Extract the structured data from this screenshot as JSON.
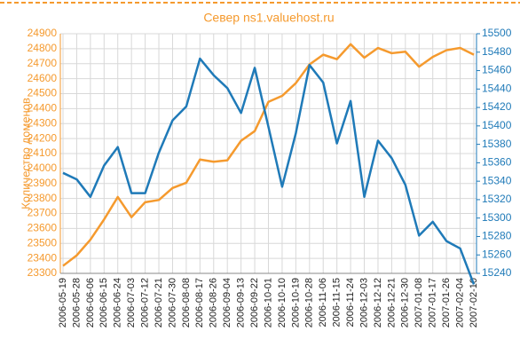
{
  "chart_data": {
    "type": "line",
    "title": "Север ns1.valuehost.ru",
    "ylabel": "Количество доменов",
    "categories": [
      "2006-05-19",
      "2006-05-28",
      "2006-06-06",
      "2006-06-15",
      "2006-06-24",
      "2006-07-03",
      "2006-07-12",
      "2006-07-21",
      "2006-07-30",
      "2006-08-08",
      "2006-08-17",
      "2006-08-26",
      "2006-09-04",
      "2006-09-13",
      "2006-09-22",
      "2006-10-01",
      "2006-10-10",
      "2006-10-19",
      "2006-10-28",
      "2006-11-06",
      "2006-11-15",
      "2006-11-24",
      "2006-12-03",
      "2006-12-12",
      "2006-12-21",
      "2006-12-30",
      "2007-01-08",
      "2007-01-17",
      "2007-01-26",
      "2007-02-04",
      "2007-02-10"
    ],
    "series": [
      {
        "color": "#f59a2e",
        "values": [
          23350,
          23420,
          23525,
          23660,
          23810,
          23675,
          23775,
          23790,
          23870,
          23905,
          24060,
          24045,
          24055,
          24185,
          24250,
          24445,
          24485,
          24570,
          24695,
          24760,
          24730,
          24830,
          24740,
          24805,
          24770,
          24780,
          24680,
          24745,
          24790,
          24805,
          24760
        ]
      },
      {
        "color": "#1f7ab8",
        "axis": "y2",
        "values": [
          15349,
          15342,
          15323,
          15357,
          15377,
          15327,
          15327,
          15371,
          15406,
          15421,
          15473,
          15455,
          15441,
          15414,
          15463,
          15399,
          15334,
          15392,
          15466,
          15447,
          15381,
          15427,
          15323,
          15384,
          15365,
          15336,
          15281,
          15296,
          15275,
          15267,
          15228
        ]
      }
    ],
    "ylim": [
      23300,
      24900
    ],
    "yticks": [
      23300,
      23400,
      23500,
      23600,
      23700,
      23800,
      23900,
      24000,
      24100,
      24200,
      24300,
      24400,
      24500,
      24600,
      24700,
      24800,
      24900
    ],
    "y2lim": [
      15240,
      15500
    ],
    "y2ticks": [
      15240,
      15260,
      15280,
      15300,
      15320,
      15340,
      15360,
      15380,
      15400,
      15420,
      15440,
      15460,
      15480,
      15500
    ],
    "grid": true
  }
}
